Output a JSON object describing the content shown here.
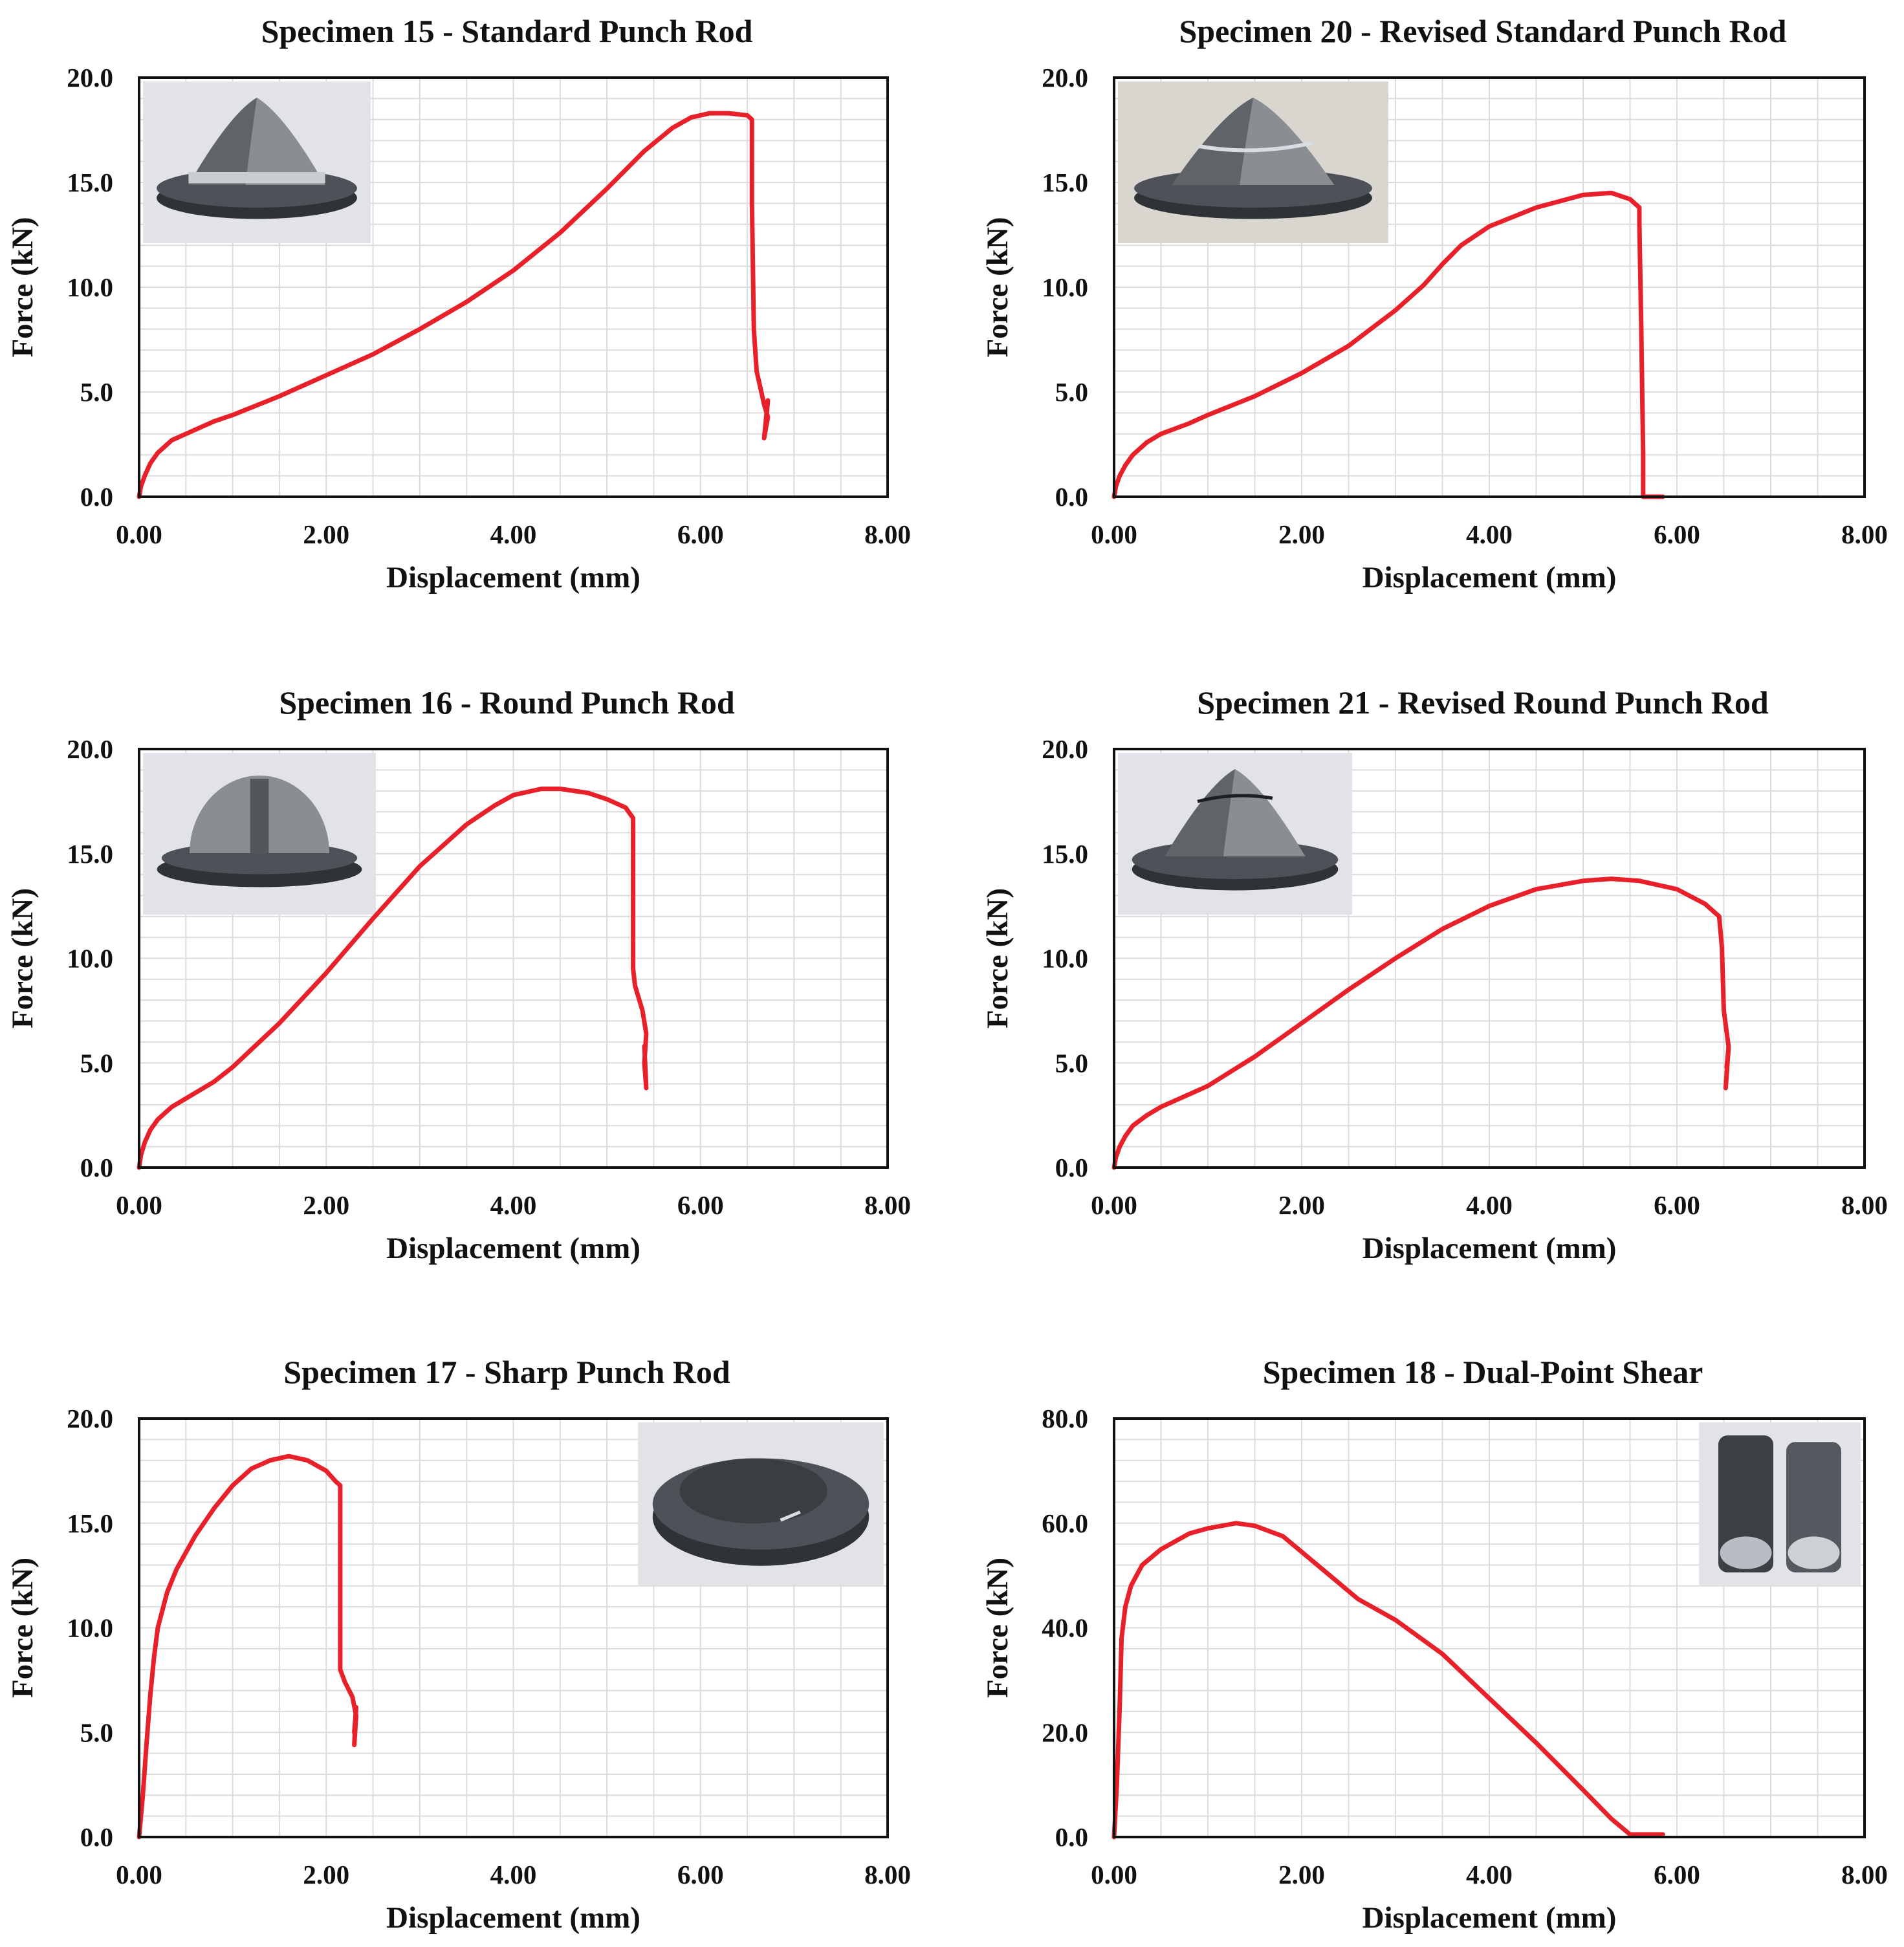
{
  "figure": {
    "description_layout": "3 rows x 2 columns grid of force-displacement charts"
  },
  "colors": {
    "curve": "#e8202a",
    "grid": "#dcdcdc",
    "frame": "#111111",
    "text": "#111111"
  },
  "chart_data": [
    {
      "type": "line",
      "title": "Specimen 15 - Standard Punch Rod",
      "xlabel": "Displacement (mm)",
      "ylabel": "Force (kN)",
      "xlim": [
        0,
        8
      ],
      "ylim": [
        0,
        20
      ],
      "xticks": [
        "0.00",
        "2.00",
        "4.00",
        "6.00",
        "8.00"
      ],
      "yticks": [
        "0.0",
        "5.0",
        "10.0",
        "15.0",
        "20.0"
      ],
      "grid": true,
      "inset_photo": {
        "position": "top-left",
        "shape": "cone",
        "icon": "cone-specimen-photo"
      },
      "series": [
        {
          "name": "Specimen 15",
          "color": "#e8202a",
          "x": [
            0.0,
            0.02,
            0.06,
            0.12,
            0.2,
            0.35,
            0.5,
            0.8,
            1.0,
            1.5,
            2.0,
            2.5,
            3.0,
            3.5,
            4.0,
            4.5,
            5.0,
            5.4,
            5.7,
            5.9,
            6.1,
            6.3,
            6.5,
            6.55,
            6.55,
            6.57,
            6.6,
            6.65,
            6.68,
            6.72,
            6.68,
            6.72,
            6.7
          ],
          "y": [
            0.0,
            0.5,
            1.0,
            1.6,
            2.1,
            2.7,
            3.0,
            3.6,
            3.9,
            4.8,
            5.8,
            6.8,
            8.0,
            9.3,
            10.8,
            12.6,
            14.7,
            16.5,
            17.6,
            18.1,
            18.3,
            18.3,
            18.2,
            18.0,
            14.0,
            8.0,
            6.0,
            5.0,
            4.4,
            3.8,
            2.8,
            4.6,
            3.5
          ]
        }
      ]
    },
    {
      "type": "line",
      "title": "Specimen 20 - Revised Standard Punch Rod",
      "xlabel": "Displacement (mm)",
      "ylabel": "Force (kN)",
      "xlim": [
        0,
        8
      ],
      "ylim": [
        0,
        20
      ],
      "xticks": [
        "0.00",
        "2.00",
        "4.00",
        "6.00",
        "8.00"
      ],
      "yticks": [
        "0.0",
        "5.0",
        "10.0",
        "15.0",
        "20.0"
      ],
      "grid": true,
      "inset_photo": {
        "position": "top-left",
        "shape": "cone",
        "icon": "cone-specimen-photo"
      },
      "series": [
        {
          "name": "Specimen 20",
          "color": "#e8202a",
          "x": [
            0.0,
            0.02,
            0.06,
            0.12,
            0.2,
            0.35,
            0.5,
            0.8,
            1.0,
            1.5,
            2.0,
            2.5,
            3.0,
            3.3,
            3.5,
            3.7,
            4.0,
            4.5,
            5.0,
            5.3,
            5.5,
            5.6,
            5.6,
            5.62,
            5.64,
            5.64,
            5.85
          ],
          "y": [
            0.0,
            0.5,
            1.0,
            1.5,
            2.0,
            2.6,
            3.0,
            3.5,
            3.9,
            4.8,
            5.9,
            7.2,
            8.9,
            10.1,
            11.1,
            12.0,
            12.9,
            13.8,
            14.4,
            14.5,
            14.2,
            13.8,
            13.0,
            8.0,
            2.0,
            0.0,
            0.0
          ]
        }
      ]
    },
    {
      "type": "line",
      "title": "Specimen 16 - Round Punch Rod",
      "xlabel": "Displacement (mm)",
      "ylabel": "Force (kN)",
      "xlim": [
        0,
        8
      ],
      "ylim": [
        0,
        20
      ],
      "xticks": [
        "0.00",
        "2.00",
        "4.00",
        "6.00",
        "8.00"
      ],
      "yticks": [
        "0.0",
        "5.0",
        "10.0",
        "15.0",
        "20.0"
      ],
      "grid": true,
      "inset_photo": {
        "position": "top-left",
        "shape": "dome",
        "icon": "dome-specimen-photo"
      },
      "series": [
        {
          "name": "Specimen 16",
          "color": "#e8202a",
          "x": [
            0.0,
            0.02,
            0.06,
            0.12,
            0.2,
            0.35,
            0.5,
            0.8,
            1.0,
            1.5,
            2.0,
            2.5,
            3.0,
            3.5,
            3.8,
            4.0,
            4.3,
            4.5,
            4.8,
            5.0,
            5.2,
            5.28,
            5.28,
            5.3,
            5.38,
            5.42,
            5.4,
            5.42,
            5.4
          ],
          "y": [
            0.0,
            0.6,
            1.2,
            1.8,
            2.3,
            2.9,
            3.3,
            4.1,
            4.8,
            6.9,
            9.3,
            11.9,
            14.4,
            16.4,
            17.3,
            17.8,
            18.1,
            18.1,
            17.9,
            17.6,
            17.2,
            16.7,
            9.5,
            8.7,
            7.5,
            6.4,
            5.0,
            3.8,
            5.8
          ]
        }
      ]
    },
    {
      "type": "line",
      "title": "Specimen 21 - Revised Round Punch Rod",
      "xlabel": "Displacement (mm)",
      "ylabel": "Force (kN)",
      "xlim": [
        0,
        8
      ],
      "ylim": [
        0,
        20
      ],
      "xticks": [
        "0.00",
        "2.00",
        "4.00",
        "6.00",
        "8.00"
      ],
      "yticks": [
        "0.0",
        "5.0",
        "10.0",
        "15.0",
        "20.0"
      ],
      "grid": true,
      "inset_photo": {
        "position": "top-left",
        "shape": "cone",
        "icon": "cracked-cone-specimen-photo"
      },
      "series": [
        {
          "name": "Specimen 21",
          "color": "#e8202a",
          "x": [
            0.0,
            0.02,
            0.06,
            0.12,
            0.2,
            0.35,
            0.5,
            0.8,
            1.0,
            1.5,
            2.0,
            2.5,
            3.0,
            3.5,
            4.0,
            4.5,
            5.0,
            5.3,
            5.6,
            6.0,
            6.3,
            6.45,
            6.48,
            6.5,
            6.55,
            6.52,
            6.55,
            6.53
          ],
          "y": [
            0.0,
            0.5,
            1.0,
            1.5,
            2.0,
            2.5,
            2.9,
            3.5,
            3.9,
            5.3,
            6.9,
            8.5,
            10.0,
            11.4,
            12.5,
            13.3,
            13.7,
            13.8,
            13.7,
            13.3,
            12.6,
            12.0,
            10.5,
            7.5,
            5.8,
            3.8,
            5.7,
            4.8
          ]
        }
      ]
    },
    {
      "type": "line",
      "title": "Specimen 17 - Sharp Punch Rod",
      "xlabel": "Displacement (mm)",
      "ylabel": "Force (kN)",
      "xlim": [
        0,
        8
      ],
      "ylim": [
        0,
        20
      ],
      "xticks": [
        "0.00",
        "2.00",
        "4.00",
        "6.00",
        "8.00"
      ],
      "yticks": [
        "0.0",
        "5.0",
        "10.0",
        "15.0",
        "20.0"
      ],
      "grid": true,
      "inset_photo": {
        "position": "top-right",
        "shape": "disc",
        "icon": "punched-disc-specimen-photo"
      },
      "series": [
        {
          "name": "Specimen 17",
          "color": "#e8202a",
          "x": [
            0.0,
            0.04,
            0.08,
            0.12,
            0.16,
            0.2,
            0.3,
            0.4,
            0.6,
            0.8,
            1.0,
            1.2,
            1.4,
            1.6,
            1.8,
            2.0,
            2.1,
            2.15,
            2.15,
            2.2,
            2.28,
            2.32,
            2.3,
            2.32,
            2.3
          ],
          "y": [
            0.0,
            2.0,
            4.5,
            6.8,
            8.6,
            10.0,
            11.7,
            12.8,
            14.4,
            15.7,
            16.8,
            17.6,
            18.0,
            18.2,
            18.0,
            17.5,
            17.0,
            16.8,
            8.0,
            7.4,
            6.7,
            5.8,
            4.4,
            6.2,
            5.0
          ]
        }
      ]
    },
    {
      "type": "line",
      "title": "Specimen 18 - Dual-Point Shear",
      "xlabel": "Displacement (mm)",
      "ylabel": "Force (kN)",
      "xlim": [
        0,
        8
      ],
      "ylim": [
        0,
        80
      ],
      "xticks": [
        "0.00",
        "2.00",
        "4.00",
        "6.00",
        "8.00"
      ],
      "yticks": [
        "0.0",
        "20.0",
        "40.0",
        "60.0",
        "80.0"
      ],
      "grid": true,
      "inset_photo": {
        "position": "top-right",
        "shape": "two-rods",
        "icon": "sheared-rods-specimen-photo"
      },
      "series": [
        {
          "name": "Specimen 18",
          "color": "#e8202a",
          "x": [
            0.0,
            0.03,
            0.06,
            0.08,
            0.12,
            0.18,
            0.3,
            0.5,
            0.8,
            1.0,
            1.3,
            1.5,
            1.8,
            2.0,
            2.3,
            2.6,
            3.0,
            3.5,
            4.0,
            4.5,
            5.0,
            5.3,
            5.5,
            5.85
          ],
          "y": [
            0.0,
            10.0,
            25.0,
            38.0,
            44.0,
            48.0,
            52.0,
            55.0,
            58.0,
            59.0,
            60.0,
            59.5,
            57.5,
            54.5,
            50.0,
            45.5,
            41.5,
            35.0,
            26.5,
            18.0,
            9.0,
            3.5,
            0.5,
            0.5
          ]
        }
      ]
    }
  ]
}
